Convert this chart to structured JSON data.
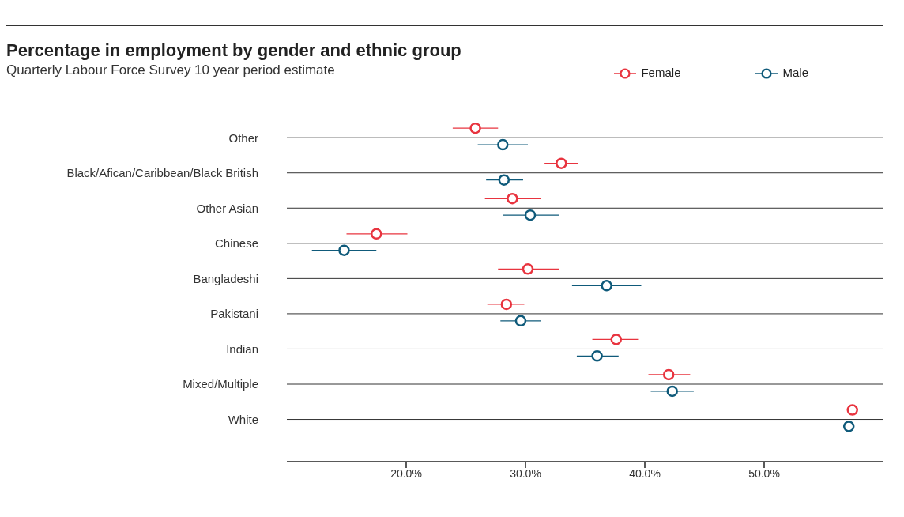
{
  "chart_data": {
    "type": "scatter",
    "title": "Percentage in employment by gender and ethnic group",
    "subtitle": "Quarterly Labour Force Survey 10 year period estimate",
    "categories": [
      "Other",
      "Black/Afican/Caribbean/Black British",
      "Other Asian",
      "Chinese",
      "Bangladeshi",
      "Pakistani",
      "Indian",
      "Mixed/Multiple",
      "White"
    ],
    "series": [
      {
        "name": "Female",
        "color": "#e8343f",
        "values": [
          25.8,
          33.0,
          28.9,
          17.5,
          30.2,
          28.4,
          37.6,
          42.0,
          57.4
        ],
        "errors": [
          [
            23.9,
            27.7
          ],
          [
            31.6,
            34.4
          ],
          [
            26.6,
            31.3
          ],
          [
            15.0,
            20.1
          ],
          [
            27.7,
            32.8
          ],
          [
            26.8,
            29.9
          ],
          [
            35.6,
            39.5
          ],
          [
            40.3,
            43.8
          ],
          null
        ]
      },
      {
        "name": "Male",
        "color": "#0f5a7a",
        "values": [
          28.1,
          28.2,
          30.4,
          14.8,
          36.8,
          29.6,
          36.0,
          42.3,
          57.1
        ],
        "errors": [
          [
            26.0,
            30.2
          ],
          [
            26.7,
            29.8
          ],
          [
            28.1,
            32.8
          ],
          [
            12.1,
            17.5
          ],
          [
            33.9,
            39.7
          ],
          [
            27.9,
            31.3
          ],
          [
            34.3,
            37.8
          ],
          [
            40.5,
            44.1
          ],
          null
        ]
      }
    ],
    "orientation": "horizontal",
    "xlim": [
      10,
      60
    ],
    "xticks": [
      {
        "value": 20,
        "label": "20.0%"
      },
      {
        "value": 30,
        "label": "30.0%"
      },
      {
        "value": 40,
        "label": "40.0%"
      },
      {
        "value": 50,
        "label": "50.0%"
      }
    ],
    "grid": "y",
    "legend": "top right",
    "marker": "circle"
  }
}
